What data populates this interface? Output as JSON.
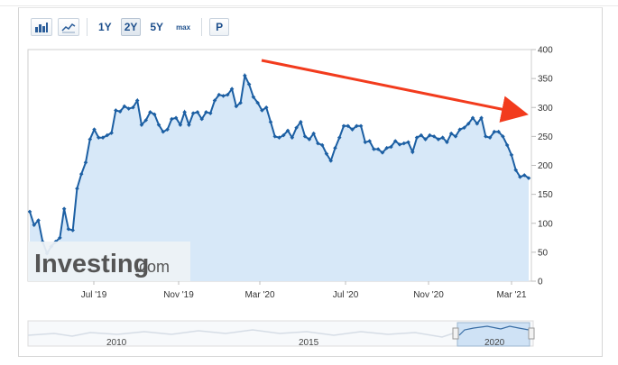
{
  "toolbar": {
    "bar_chart_icon": "bar-chart-icon",
    "line_chart_icon": "line-chart-icon",
    "range_1y": "1Y",
    "range_2y": "2Y",
    "range_5y": "5Y",
    "range_max": "max",
    "p_button": "P"
  },
  "watermark": {
    "brand": "Investing",
    "suffix": ".com"
  },
  "navigator": {
    "labels": [
      "2010",
      "2015",
      "2020"
    ]
  },
  "colors": {
    "line": "#1c5fa3",
    "area": "#d7e8f8",
    "arrow": "#f23b1d",
    "watermark_text": "#555555",
    "watermark_bg": "#eef2f5"
  },
  "chart_data": {
    "type": "area",
    "x_tick_labels": [
      "Jul '19",
      "Nov '19",
      "Mar '20",
      "Jul '20",
      "Nov '20",
      "Mar '21"
    ],
    "y_ticks": [
      0,
      50,
      100,
      150,
      200,
      250,
      300,
      350,
      400
    ],
    "ylim": [
      0,
      400
    ],
    "grid": false,
    "y_axis_side": "right",
    "values": [
      120,
      97,
      105,
      68,
      48,
      60,
      68,
      75,
      125,
      90,
      88,
      160,
      185,
      205,
      245,
      262,
      248,
      248,
      252,
      256,
      295,
      293,
      302,
      298,
      300,
      312,
      270,
      278,
      292,
      288,
      270,
      258,
      262,
      280,
      282,
      270,
      292,
      270,
      290,
      292,
      280,
      292,
      290,
      312,
      322,
      320,
      322,
      332,
      302,
      308,
      355,
      340,
      318,
      308,
      295,
      300,
      275,
      250,
      248,
      252,
      260,
      248,
      265,
      275,
      250,
      245,
      255,
      238,
      235,
      220,
      208,
      230,
      248,
      268,
      268,
      262,
      268,
      268,
      240,
      242,
      228,
      228,
      222,
      230,
      232,
      242,
      236,
      238,
      240,
      223,
      248,
      252,
      245,
      252,
      250,
      245,
      248,
      240,
      255,
      250,
      262,
      265,
      272,
      282,
      272,
      282,
      250,
      248,
      258,
      258,
      250,
      235,
      218,
      192,
      180,
      183,
      178
    ],
    "annotations": [
      {
        "type": "arrow",
        "from_index": 50,
        "to_index": 116,
        "description": "downtrend"
      }
    ]
  }
}
